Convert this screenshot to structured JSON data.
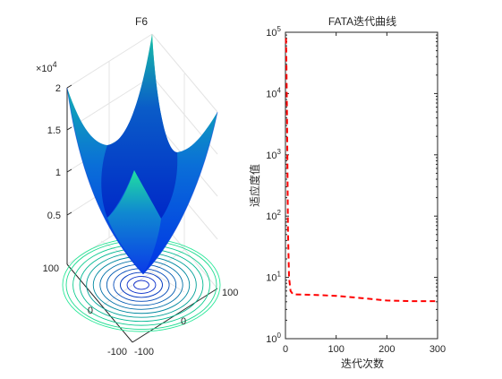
{
  "window": {
    "background": "#f0f0f0"
  },
  "left_panel": {
    "title": "F6",
    "z_ticks": [
      "0.5",
      "1",
      "1.5",
      "2"
    ],
    "z_exponent_label": "×10",
    "z_exponent": "4",
    "x_ticks": [
      "-100",
      "0",
      "100"
    ],
    "y_ticks": [
      "-100",
      "0",
      "100"
    ]
  },
  "right_panel": {
    "title": "FATA迭代曲线",
    "xlabel": "迭代次数",
    "ylabel": "适应度值",
    "x_ticks": [
      "0",
      "100",
      "200",
      "300"
    ],
    "y_tick_base": "10",
    "y_tick_exponents": [
      "0",
      "1",
      "2",
      "3",
      "4",
      "5"
    ]
  },
  "chart_data": [
    {
      "type": "surface",
      "title": "F6",
      "x_range": [
        -100,
        100
      ],
      "y_range": [
        -100,
        100
      ],
      "z_range": [
        0,
        20000
      ],
      "z_tick_values": [
        5000,
        10000,
        15000,
        20000
      ],
      "colormap": "winter",
      "contour_projection": true
    },
    {
      "type": "line",
      "title": "FATA迭代曲线",
      "xlabel": "迭代次数",
      "ylabel": "适应度值",
      "xlim": [
        0,
        300
      ],
      "ylim": [
        1,
        100000
      ],
      "yscale": "log",
      "line_color": "#ff0000",
      "line_style": "dashed",
      "x": [
        1,
        2,
        3,
        4,
        5,
        7,
        10,
        15,
        50,
        100,
        150,
        200,
        250,
        300
      ],
      "y": [
        80000,
        30000,
        5000,
        500,
        60,
        10,
        6,
        5.3,
        5.2,
        5,
        4.6,
        4.2,
        4.1,
        4.1
      ]
    }
  ]
}
